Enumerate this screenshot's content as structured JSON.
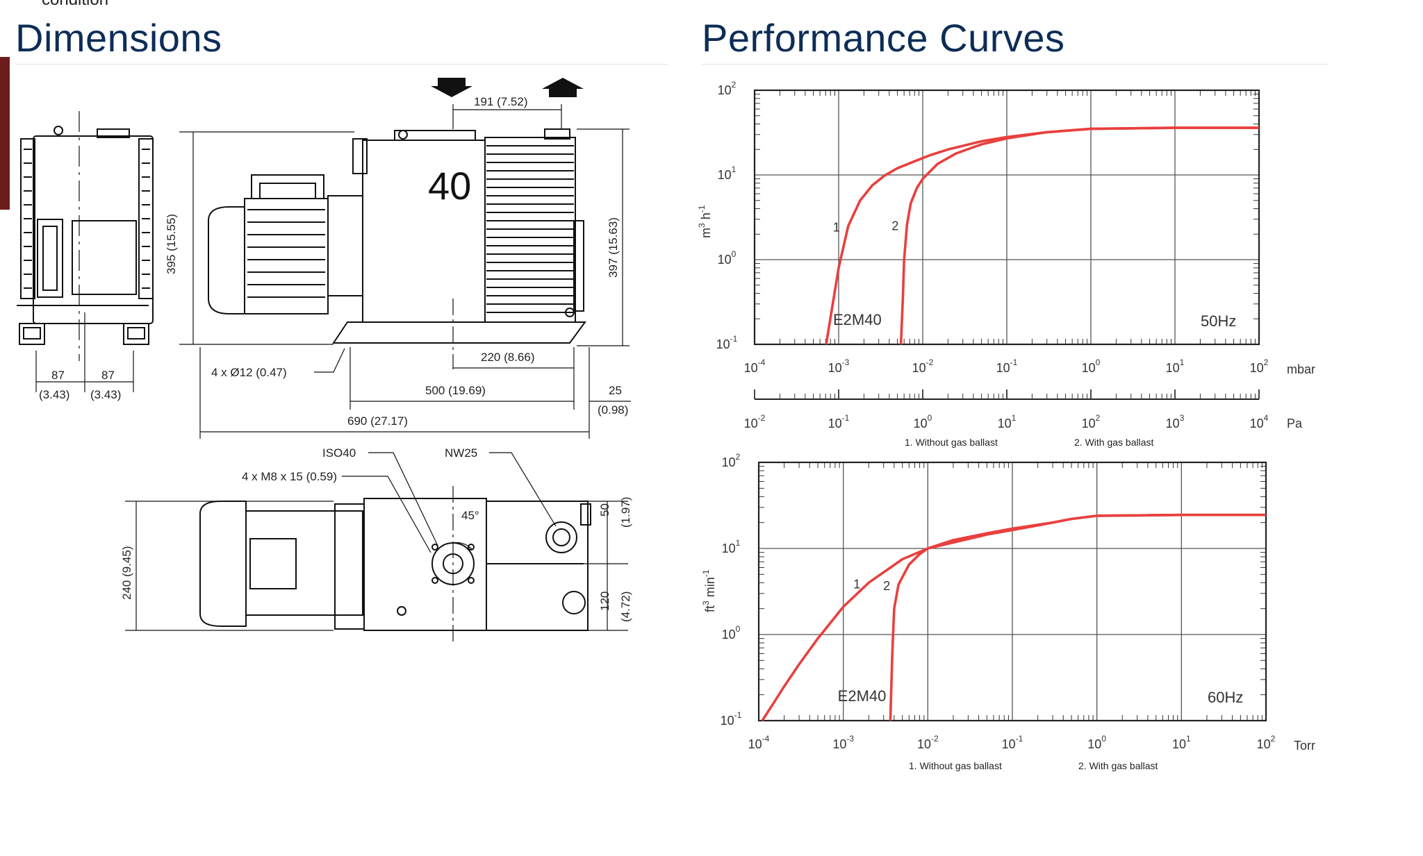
{
  "page": {
    "cut_text": "condition",
    "sections": {
      "dimensions_title": "Dimensions",
      "performance_title": "Performance Curves"
    }
  },
  "dimensions": {
    "model_number": "40",
    "labels": {
      "d191": "191 (7.52)",
      "d395": "395 (15.55)",
      "d397": "397 (15.63)",
      "d87a": "87",
      "d87a_in": "(3.43)",
      "d87b": "87",
      "d87b_in": "(3.43)",
      "holes": "4 x Ø12 (0.47)",
      "d220": "220 (8.66)",
      "d500": "500 (19.69)",
      "d25": "25",
      "d25_in": "(0.98)",
      "d690": "690 (27.17)",
      "iso40": "ISO40",
      "nw25": "NW25",
      "m8": "4 x M8 x 15 (0.59)",
      "angle": "45°",
      "d240": "240 (9.45)",
      "d50": "50",
      "d50_in": "(1.97)",
      "d120": "120",
      "d120_in": "(4.72)"
    }
  },
  "chart_data": [
    {
      "type": "line",
      "title": "",
      "model_label": "E2M40",
      "frequency_label": "50Hz",
      "ylabel_base": "m",
      "ylabel_exp1": "3",
      "ylabel_mid": " h",
      "ylabel_exp2": "-1",
      "xscale": "log",
      "yscale": "log",
      "xlim": [
        0.0001,
        100
      ],
      "ylim": [
        0.1,
        100
      ],
      "x_unit": "mbar",
      "x_ticks": [
        {
          "b": "10",
          "e": "-4"
        },
        {
          "b": "10",
          "e": "-3"
        },
        {
          "b": "10",
          "e": "-2"
        },
        {
          "b": "10",
          "e": "-1"
        },
        {
          "b": "10",
          "e": "0"
        },
        {
          "b": "10",
          "e": "1"
        },
        {
          "b": "10",
          "e": "2"
        }
      ],
      "y_ticks": [
        {
          "b": "10",
          "e": "-1"
        },
        {
          "b": "10",
          "e": "0"
        },
        {
          "b": "10",
          "e": "1"
        },
        {
          "b": "10",
          "e": "2"
        }
      ],
      "secondary_x_unit": "Pa",
      "secondary_x_ticks": [
        {
          "b": "10",
          "e": "-2"
        },
        {
          "b": "10",
          "e": "-1"
        },
        {
          "b": "10",
          "e": "0"
        },
        {
          "b": "10",
          "e": "1"
        },
        {
          "b": "10",
          "e": "2"
        },
        {
          "b": "10",
          "e": "3"
        },
        {
          "b": "10",
          "e": "4"
        }
      ],
      "grid": true,
      "legend_note": [
        "1. Without gas ballast",
        "2. With gas ballast"
      ],
      "color": "#e8403e",
      "series": [
        {
          "name": "1",
          "x": [
            0.00071,
            0.00085,
            0.001,
            0.0013,
            0.0018,
            0.0025,
            0.0035,
            0.005,
            0.008,
            0.012,
            0.02,
            0.05,
            0.1,
            0.3,
            1,
            10,
            100
          ],
          "y": [
            0.1,
            0.3,
            0.8,
            2.5,
            5.0,
            7.5,
            9.8,
            12.0,
            14.5,
            17.0,
            20.0,
            25.0,
            28.0,
            32.0,
            35.0,
            36.0,
            36.0
          ]
        },
        {
          "name": "2",
          "x": [
            0.0055,
            0.0058,
            0.006,
            0.0065,
            0.0072,
            0.0085,
            0.01,
            0.015,
            0.025,
            0.05,
            0.1,
            0.3,
            1,
            10,
            100
          ],
          "y": [
            0.1,
            0.35,
            1.0,
            2.6,
            4.6,
            7.0,
            9.0,
            13.5,
            18.0,
            23.0,
            27.0,
            32.0,
            35.0,
            36.0,
            36.0
          ]
        }
      ]
    },
    {
      "type": "line",
      "title": "",
      "model_label": "E2M40",
      "frequency_label": "60Hz",
      "ylabel_base": "ft",
      "ylabel_exp1": "3",
      "ylabel_mid": " min",
      "ylabel_exp2": "-1",
      "xscale": "log",
      "yscale": "log",
      "xlim": [
        0.0001,
        100
      ],
      "ylim": [
        0.1,
        100
      ],
      "x_unit": "Torr",
      "x_ticks": [
        {
          "b": "10",
          "e": "-4"
        },
        {
          "b": "10",
          "e": "-3"
        },
        {
          "b": "10",
          "e": "-2"
        },
        {
          "b": "10",
          "e": "-1"
        },
        {
          "b": "10",
          "e": "0"
        },
        {
          "b": "10",
          "e": "1"
        },
        {
          "b": "10",
          "e": "2"
        }
      ],
      "y_ticks": [
        {
          "b": "10",
          "e": "-1"
        },
        {
          "b": "10",
          "e": "0"
        },
        {
          "b": "10",
          "e": "1"
        },
        {
          "b": "10",
          "e": "2"
        }
      ],
      "grid": true,
      "legend_note": [
        "1. Without gas ballast",
        "2. With gas ballast"
      ],
      "color": "#e8403e",
      "series": [
        {
          "name": "1",
          "x": [
            0.00011,
            0.00015,
            0.0002,
            0.0003,
            0.0005,
            0.0008,
            0.001,
            0.002,
            0.005,
            0.01,
            0.05,
            0.2,
            0.5,
            1,
            10,
            100
          ],
          "y": [
            0.1,
            0.16,
            0.25,
            0.45,
            0.9,
            1.6,
            2.1,
            4.0,
            7.5,
            10.0,
            14.5,
            18.5,
            22.0,
            24.0,
            24.5,
            24.5
          ]
        },
        {
          "name": "2",
          "x": [
            0.0036,
            0.0038,
            0.004,
            0.0045,
            0.006,
            0.008,
            0.01,
            0.02,
            0.05,
            0.1,
            0.3,
            0.5,
            1,
            10,
            100
          ],
          "y": [
            0.1,
            0.6,
            2.0,
            3.8,
            6.5,
            8.6,
            10.0,
            12.5,
            15.0,
            17.0,
            20.0,
            22.0,
            24.0,
            24.5,
            24.5
          ]
        }
      ]
    }
  ]
}
